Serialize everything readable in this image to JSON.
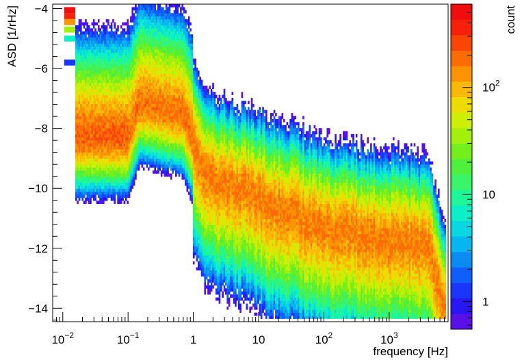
{
  "chart_data": {
    "type": "heatmap",
    "title": "",
    "xlabel": "frequency [Hz]",
    "ylabel": "ASD [1/rHz]",
    "zlabel": "count",
    "x_scale": "log",
    "x_range": [
      0.007,
      8000
    ],
    "y_range": [
      -14.45,
      -3.85
    ],
    "z_scale": "log",
    "z_range": [
      0.55,
      600
    ],
    "x_major_ticks": [
      {
        "value": 0.01,
        "base": "10",
        "exp": "−2"
      },
      {
        "value": 0.1,
        "base": "10",
        "exp": "−1"
      },
      {
        "value": 1,
        "base": "1",
        "exp": ""
      },
      {
        "value": 10,
        "base": "10",
        "exp": ""
      },
      {
        "value": 100,
        "base": "10",
        "exp": "2"
      },
      {
        "value": 1000,
        "base": "10",
        "exp": "3"
      }
    ],
    "y_ticks": [
      {
        "value": -4,
        "label": "−4"
      },
      {
        "value": -6,
        "label": "−6"
      },
      {
        "value": -8,
        "label": "−8"
      },
      {
        "value": -10,
        "label": "−10"
      },
      {
        "value": -12,
        "label": "−12"
      },
      {
        "value": -14,
        "label": "−14"
      }
    ],
    "z_ticks": [
      {
        "value": 1,
        "base": "1",
        "exp": ""
      },
      {
        "value": 10,
        "base": "10",
        "exp": ""
      },
      {
        "value": 100,
        "base": "10",
        "exp": "2"
      }
    ],
    "palette": [
      "#5a11e8",
      "#2a16f2",
      "#1a36fa",
      "#0e5ffb",
      "#0a8cf3",
      "#07b6ef",
      "#09d8e2",
      "#0bf0c6",
      "#1ef799",
      "#3af46a",
      "#4ff03c",
      "#73f01c",
      "#a3f00c",
      "#cdef06",
      "#ecdc04",
      "#f9b904",
      "#fb9303",
      "#fb6d04",
      "#f94607",
      "#f5210b",
      "#f00d0e"
    ],
    "median_ridge": [
      [
        0.015,
        -8.3
      ],
      [
        0.1,
        -8.3
      ],
      [
        0.15,
        -7.2
      ],
      [
        0.7,
        -7.6
      ],
      [
        1.5,
        -9.5
      ],
      [
        10,
        -10.3
      ],
      [
        100,
        -11.3
      ],
      [
        4000,
        -11.9
      ],
      [
        7500,
        -14.4
      ]
    ],
    "notes_free": false
  }
}
